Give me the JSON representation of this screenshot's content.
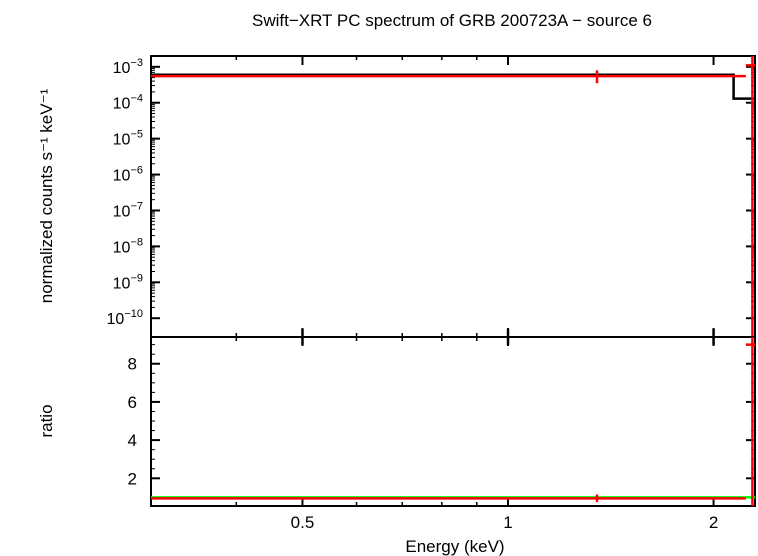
{
  "chart_data": [
    {
      "type": "line",
      "panel": "spectrum",
      "title": "Swift−XRT PC spectrum of GRB 200723A − source 6",
      "ylabel": "normalized counts s⁻¹ keV⁻¹",
      "xlabel": "",
      "xscale": "log",
      "yscale": "log",
      "xlim": [
        0.3,
        2.3
      ],
      "ylim": [
        3e-11,
        0.002
      ],
      "yticks": [
        {
          "exp": "-3"
        },
        {
          "exp": "-4"
        },
        {
          "exp": "-5"
        },
        {
          "exp": "-6"
        },
        {
          "exp": "-7"
        },
        {
          "exp": "-8"
        },
        {
          "exp": "-9"
        },
        {
          "exp": "-10"
        }
      ],
      "series": [
        {
          "kind": "model-step",
          "color": "#000000",
          "x": [
            0.3,
            2.14,
            2.14,
            2.3
          ],
          "y": [
            0.0006,
            0.0006,
            0.00013,
            0.00013
          ]
        },
        {
          "kind": "data-crosses",
          "color": "#ff0000",
          "points": [
            {
              "x": 1.35,
              "xerr": [
                0.3,
                2.23
              ],
              "y": 0.00055,
              "yerr": [
                0.00035,
                0.0008
              ]
            },
            {
              "x": 2.28,
              "xerr": [
                2.23,
                2.3
              ],
              "y": 0.0011,
              "yerr": [
                3e-11,
                0.002
              ]
            }
          ]
        }
      ]
    },
    {
      "type": "line",
      "panel": "ratio",
      "ylabel": "ratio",
      "xlabel": "Energy (keV)",
      "xscale": "log",
      "xlim": [
        0.3,
        2.3
      ],
      "ylim": [
        0.55,
        9.4
      ],
      "xticks": [
        "0.5",
        "1",
        "2"
      ],
      "yticks": [
        "2",
        "4",
        "6",
        "8"
      ],
      "series": [
        {
          "kind": "unity-line",
          "color": "#00ff00",
          "y": 1
        },
        {
          "kind": "data-crosses",
          "color": "#ff0000",
          "points": [
            {
              "x": 1.35,
              "xerr": [
                0.3,
                2.23
              ],
              "y": 0.95,
              "yerr": [
                0.75,
                1.15
              ]
            },
            {
              "x": 2.28,
              "xerr": [
                2.23,
                2.3
              ],
              "y": 9.0,
              "yerr": [
                0.55,
                9.4
              ]
            }
          ]
        }
      ]
    }
  ]
}
